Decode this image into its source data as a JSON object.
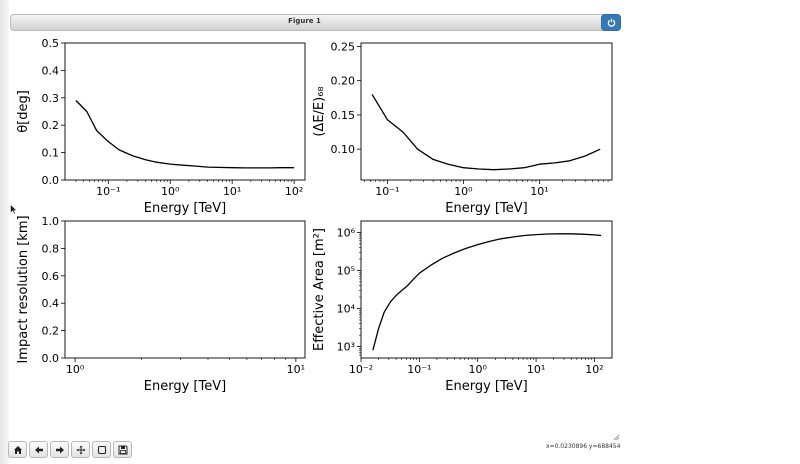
{
  "window": {
    "title": "Figure 1"
  },
  "colors": {
    "accent": "#337ab7",
    "line": "#000000"
  },
  "icons": {
    "close": "power-icon",
    "home": "home-icon",
    "back": "arrow-left-icon",
    "forward": "arrow-right-icon",
    "pan": "move-icon",
    "zoom": "zoom-rect-icon",
    "save": "save-icon"
  },
  "status": {
    "coords": "x=0.0230896 y=688454"
  },
  "chart_data": [
    {
      "type": "line",
      "xscale": "log",
      "xlim": [
        0.02,
        150
      ],
      "ylim": [
        0,
        0.5
      ],
      "xticks": [
        0.1,
        1,
        10,
        100
      ],
      "xtick_labels": [
        "10⁻¹",
        "10⁰",
        "10¹",
        "10²"
      ],
      "yticks": [
        0,
        0.1,
        0.2,
        0.3,
        0.4,
        0.5
      ],
      "ytick_labels": [
        "0.0",
        "0.1",
        "0.2",
        "0.3",
        "0.4",
        "0.5"
      ],
      "xlabel": "Energy [TeV]",
      "ylabel": "θ[deg]",
      "x": [
        0.03,
        0.045,
        0.065,
        0.1,
        0.15,
        0.25,
        0.4,
        0.6,
        1,
        1.6,
        2.5,
        4,
        6,
        10,
        16,
        25,
        40,
        60,
        100
      ],
      "y": [
        0.29,
        0.25,
        0.18,
        0.14,
        0.11,
        0.088,
        0.074,
        0.065,
        0.058,
        0.054,
        0.051,
        0.047,
        0.046,
        0.045,
        0.044,
        0.044,
        0.044,
        0.045,
        0.045
      ]
    },
    {
      "type": "line",
      "xscale": "log",
      "xlim": [
        0.045,
        90
      ],
      "ylim": [
        0.055,
        0.255
      ],
      "xticks": [
        0.1,
        1,
        10
      ],
      "xtick_labels": [
        "10⁻¹",
        "10⁰",
        "10¹"
      ],
      "yticks": [
        0.1,
        0.15,
        0.2,
        0.25
      ],
      "ytick_labels": [
        "0.10",
        "0.15",
        "0.20",
        "0.25"
      ],
      "xlabel": "Energy [TeV]",
      "ylabel": "(ΔE/E)₆₈",
      "x": [
        0.063,
        0.1,
        0.16,
        0.25,
        0.4,
        0.63,
        1,
        1.6,
        2.5,
        4,
        6.3,
        10,
        16,
        25,
        40,
        63
      ],
      "y": [
        0.18,
        0.143,
        0.125,
        0.1,
        0.085,
        0.078,
        0.073,
        0.071,
        0.07,
        0.071,
        0.073,
        0.078,
        0.08,
        0.083,
        0.09,
        0.1
      ]
    },
    {
      "type": "line",
      "xscale": "log",
      "xlim": [
        0.9,
        11
      ],
      "ylim": [
        0,
        1
      ],
      "xticks": [
        1,
        10
      ],
      "xtick_labels": [
        "10⁰",
        "10¹"
      ],
      "yticks": [
        0,
        0.2,
        0.4,
        0.6,
        0.8,
        1.0
      ],
      "ytick_labels": [
        "0.0",
        "0.2",
        "0.4",
        "0.6",
        "0.8",
        "1.0"
      ],
      "xlabel": "Energy [TeV]",
      "ylabel": "Impact resolution [km]",
      "x": [],
      "y": []
    },
    {
      "type": "line",
      "xscale": "log",
      "yscale": "log",
      "xlim": [
        0.01,
        200
      ],
      "ylim": [
        500,
        2000000
      ],
      "xticks": [
        0.01,
        0.1,
        1,
        10,
        100
      ],
      "xtick_labels": [
        "10⁻²",
        "10⁻¹",
        "10⁰",
        "10¹",
        "10²"
      ],
      "yticks": [
        1000,
        10000,
        100000,
        1000000
      ],
      "ytick_labels": [
        "10³",
        "10⁴",
        "10⁵",
        "10⁶"
      ],
      "xlabel": "Energy [TeV]",
      "ylabel": "Effective Area [m²]",
      "x": [
        0.016,
        0.02,
        0.025,
        0.032,
        0.04,
        0.05,
        0.063,
        0.08,
        0.1,
        0.16,
        0.25,
        0.4,
        0.63,
        1,
        1.6,
        2.5,
        4,
        6.3,
        10,
        16,
        25,
        40,
        63,
        100,
        130
      ],
      "y": [
        800,
        3000,
        8000,
        15000,
        22000,
        30000,
        40000,
        60000,
        85000,
        140000,
        210000,
        290000,
        380000,
        480000,
        580000,
        680000,
        760000,
        830000,
        880000,
        910000,
        920000,
        920000,
        900000,
        860000,
        830000
      ]
    }
  ]
}
